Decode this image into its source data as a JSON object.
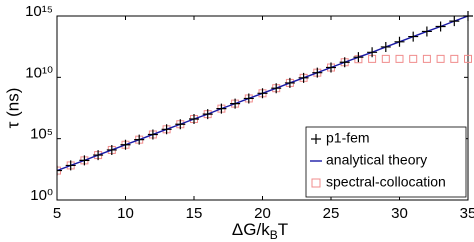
{
  "chart_data": {
    "type": "line",
    "xlabel": [
      "ΔG/k",
      "B",
      "T"
    ],
    "ylabel": "τ (ns)",
    "x": [
      5,
      6,
      7,
      8,
      9,
      10,
      11,
      12,
      13,
      14,
      15,
      16,
      17,
      18,
      19,
      20,
      21,
      22,
      23,
      24,
      25,
      26,
      27,
      28,
      29,
      30,
      31,
      32,
      33,
      34,
      35
    ],
    "series": [
      {
        "name": "p1-fem",
        "color": "#000000",
        "marker": "plus",
        "values": [
          250.0,
          660.0,
          1700.0,
          4600.0,
          12000.0,
          32000.0,
          83000.0,
          220000.0,
          580000.0,
          1500000.0,
          4000000.0,
          10000000.0,
          28000000.0,
          72000000.0,
          190000000.0,
          500000000.0,
          1300000000.0,
          3500000000.0,
          9100000000.0,
          24000000000.0,
          63000000000.0,
          170000000000.0,
          440000000000.0,
          1100000000000.0,
          3000000000000.0,
          7900000000000.0,
          21000000000000.0,
          55000000000000.0,
          140000000000000.0,
          380000000000000.0,
          1000000000000000.0
        ]
      },
      {
        "name": "analytical theory",
        "color": "#1a1aa6",
        "marker": "none",
        "values": [
          250.0,
          660.0,
          1700.0,
          4600.0,
          12000.0,
          32000.0,
          83000.0,
          220000.0,
          580000.0,
          1500000.0,
          4000000.0,
          10000000.0,
          28000000.0,
          72000000.0,
          190000000.0,
          500000000.0,
          1300000000.0,
          3500000000.0,
          9100000000.0,
          24000000000.0,
          63000000000.0,
          170000000000.0,
          440000000000.0,
          1100000000000.0,
          3000000000000.0,
          7900000000000.0,
          21000000000000.0,
          55000000000000.0,
          140000000000000.0,
          380000000000000.0,
          1000000000000000.0
        ]
      },
      {
        "name": "spectral-collocation",
        "color": "#f08c8c",
        "marker": "square",
        "values": [
          250.0,
          660.0,
          1700.0,
          4600.0,
          12000.0,
          32000.0,
          83000.0,
          220000.0,
          580000.0,
          1500000.0,
          4000000.0,
          10000000.0,
          28000000.0,
          72000000.0,
          190000000.0,
          500000000.0,
          1300000000.0,
          3500000000.0,
          9100000000.0,
          24000000000.0,
          63000000000.0,
          170000000000.0,
          300000000000.0,
          320000000000.0,
          320000000000.0,
          320000000000.0,
          320000000000.0,
          320000000000.0,
          320000000000.0,
          320000000000.0,
          320000000000.0
        ]
      }
    ],
    "xlim": [
      5,
      35
    ],
    "xticks": [
      5,
      10,
      15,
      20,
      25,
      30,
      35
    ],
    "ylim": [
      1,
      1000000000000000.0
    ],
    "ylog": true,
    "yticks": [
      {
        "value": 1,
        "label": "10⁰"
      },
      {
        "value": 100000,
        "label": "10⁵"
      },
      {
        "value": 10000000000,
        "label": "10¹⁰"
      },
      {
        "value": 1000000000000000,
        "label": "10¹⁵"
      }
    ],
    "grid": false,
    "legend": "lower right"
  }
}
